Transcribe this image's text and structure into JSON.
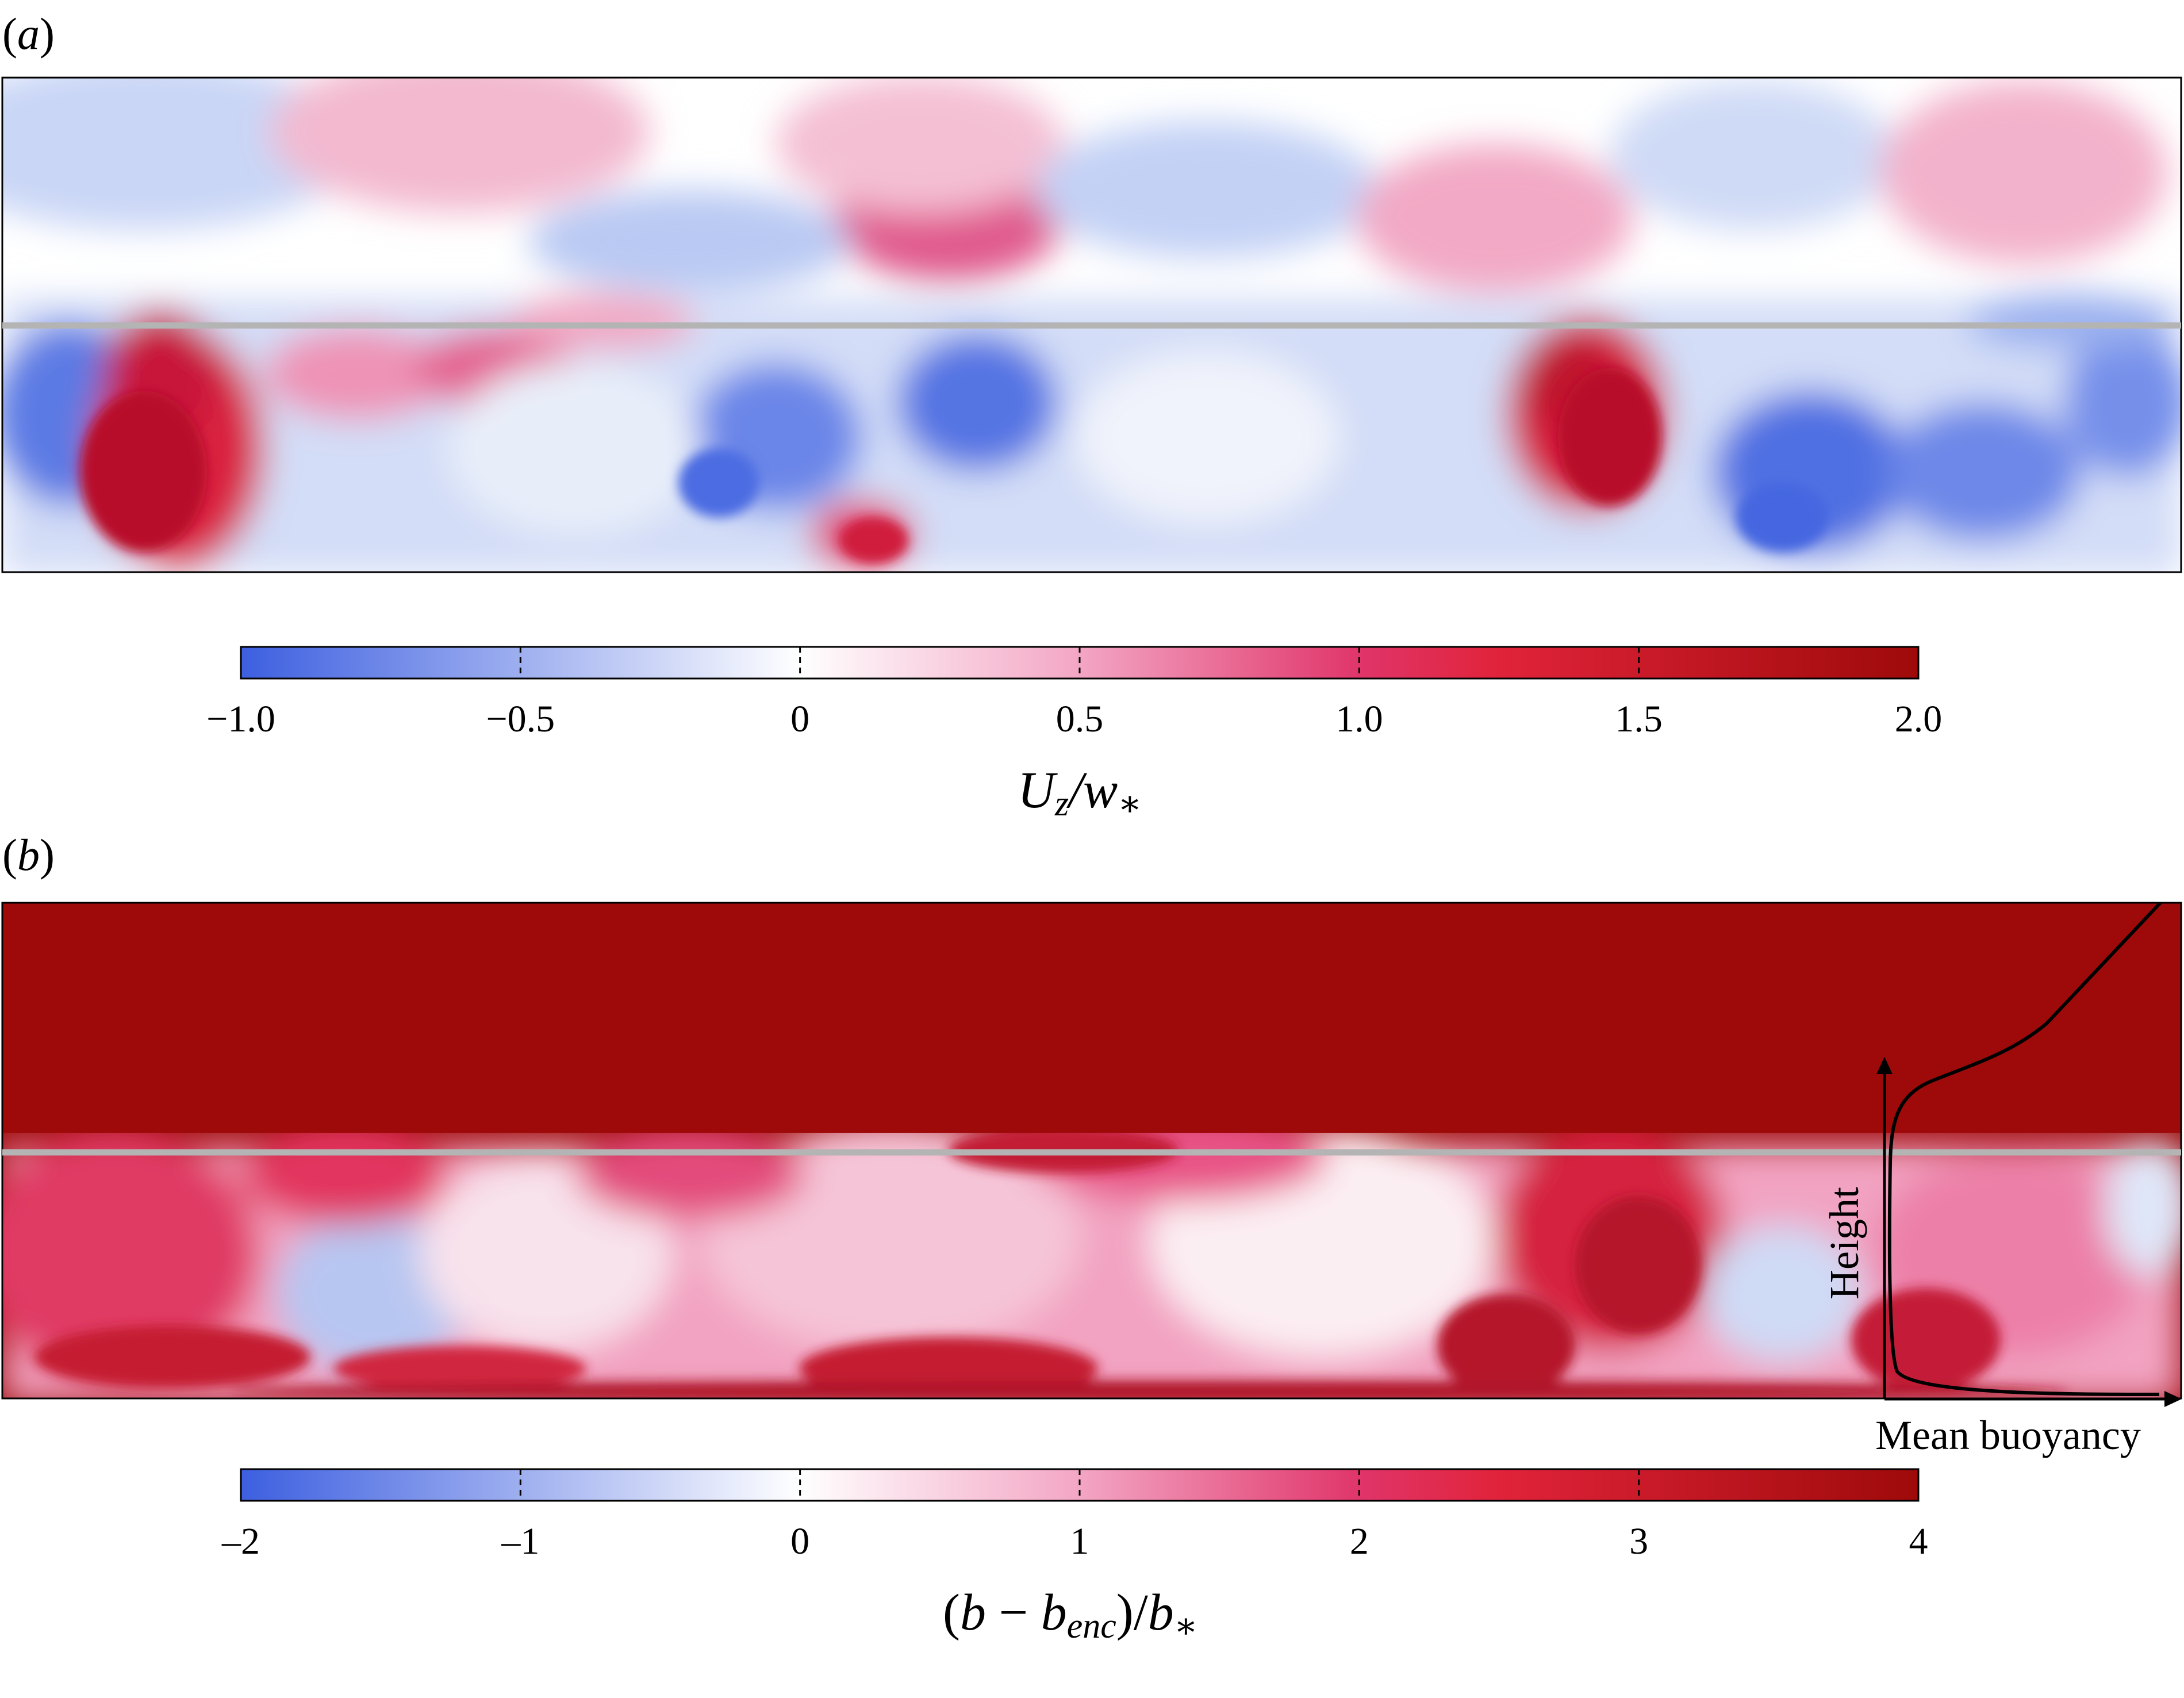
{
  "panels": [
    {
      "label_open": "(",
      "label_letter": "a",
      "label_close": ")"
    },
    {
      "label_open": "(",
      "label_letter": "b",
      "label_close": ")"
    }
  ],
  "colorbar_a": {
    "ticks": [
      "−1.0",
      "−0.5",
      "0",
      "0.5",
      "1.0",
      "1.5",
      "2.0"
    ],
    "range": [
      -1.0,
      2.0
    ],
    "title_u": "U",
    "title_sub_z": "z",
    "title_rest": "/w",
    "title_star": "∗"
  },
  "colorbar_b": {
    "ticks": [
      "–2",
      "–1",
      "0",
      "1",
      "2",
      "3",
      "4"
    ],
    "range": [
      -2,
      4
    ],
    "title_pre": "(",
    "title_b": "b",
    "title_minus": " − ",
    "title_b2": "b",
    "title_sub_enc": "enc",
    "title_mid": ")/",
    "title_b3": "b",
    "title_star": "∗"
  },
  "inset": {
    "ylabel": "Height",
    "xlabel": "Mean buoyancy"
  },
  "colors": {
    "blue": "#3d5fe0",
    "white": "#ffffff",
    "pink": "#e0528a",
    "red": "#e1233a",
    "darkred": "#9e0a0a",
    "entrainment_line": "#b4b4b4"
  }
}
